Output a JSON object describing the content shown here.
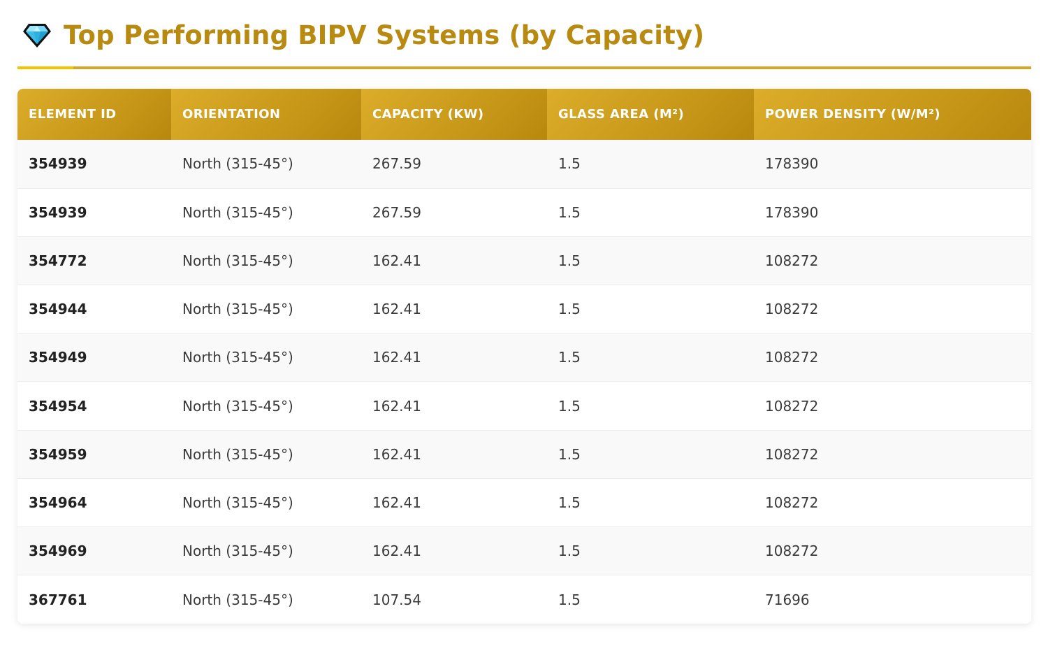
{
  "header": {
    "icon": "gem-icon",
    "title": "Top Performing BIPV Systems (by Capacity)"
  },
  "colors": {
    "accent": "#b88a10",
    "header_gradient_start": "#dcac2a",
    "header_gradient_end": "#b8880e",
    "rule": "#d4a72a",
    "rule_accent": "#f2c400"
  },
  "table": {
    "columns": [
      "ELEMENT ID",
      "ORIENTATION",
      "CAPACITY (KW)",
      "GLASS AREA (M²)",
      "POWER DENSITY (W/M²)"
    ],
    "rows": [
      [
        "354939",
        "North (315-45°)",
        "267.59",
        "1.5",
        "178390"
      ],
      [
        "354939",
        "North (315-45°)",
        "267.59",
        "1.5",
        "178390"
      ],
      [
        "354772",
        "North (315-45°)",
        "162.41",
        "1.5",
        "108272"
      ],
      [
        "354944",
        "North (315-45°)",
        "162.41",
        "1.5",
        "108272"
      ],
      [
        "354949",
        "North (315-45°)",
        "162.41",
        "1.5",
        "108272"
      ],
      [
        "354954",
        "North (315-45°)",
        "162.41",
        "1.5",
        "108272"
      ],
      [
        "354959",
        "North (315-45°)",
        "162.41",
        "1.5",
        "108272"
      ],
      [
        "354964",
        "North (315-45°)",
        "162.41",
        "1.5",
        "108272"
      ],
      [
        "354969",
        "North (315-45°)",
        "162.41",
        "1.5",
        "108272"
      ],
      [
        "367761",
        "North (315-45°)",
        "107.54",
        "1.5",
        "71696"
      ]
    ]
  }
}
